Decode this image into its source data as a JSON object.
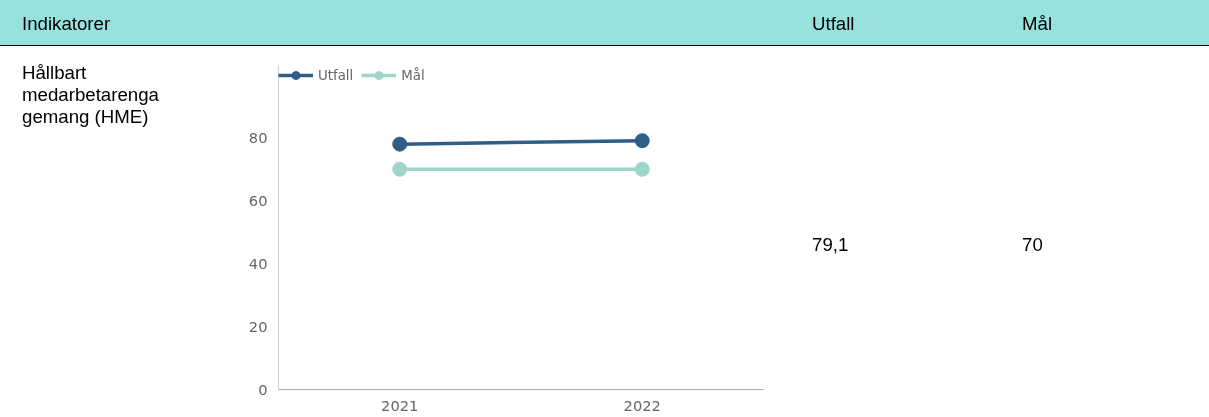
{
  "chart_data": {
    "type": "line",
    "x": [
      2021,
      2022
    ],
    "series": [
      {
        "name": "Utfall",
        "color": "#2f5f86",
        "values": [
          78,
          79.1
        ]
      },
      {
        "name": "Mål",
        "color": "#9fd6c9",
        "values": [
          70,
          70
        ]
      }
    ],
    "xlim": [
      2020.5,
      2022.5
    ],
    "xticks": [
      2021,
      2022
    ],
    "ylim": [
      0,
      103
    ],
    "yticks": [
      0,
      20,
      40,
      60,
      80
    ],
    "grid": false,
    "legend": "top left",
    "marker": "circle",
    "line_style": "solid",
    "annotations": [
      "Indikatorer",
      "Utfall",
      "Mål",
      "Hållbart medarbetarengagemang (HME)",
      "79,1",
      "70"
    ]
  }
}
